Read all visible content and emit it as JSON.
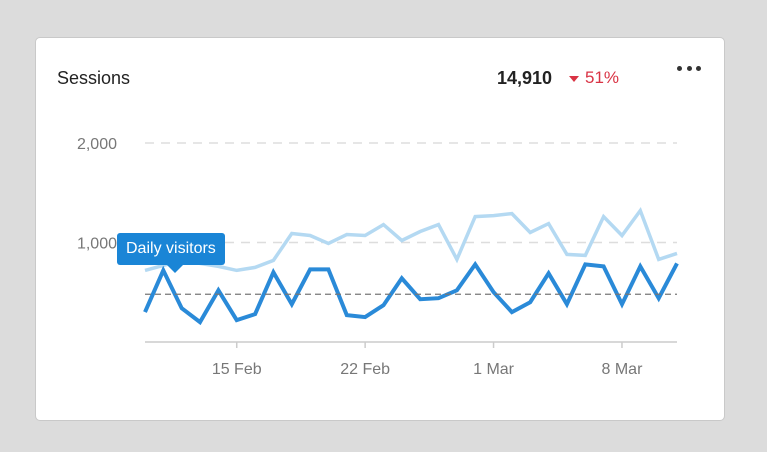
{
  "widget": {
    "title": "Sessions",
    "total": "14,910",
    "change": "51%",
    "change_direction": "down",
    "change_color": "#d93344",
    "menu_icon": "more-horizontal-icon",
    "tooltip": "Daily visitors"
  },
  "chart_data": {
    "type": "line",
    "x": [
      "2025-02-10",
      "2025-02-11",
      "2025-02-12",
      "2025-02-13",
      "2025-02-14",
      "2025-02-15",
      "2025-02-16",
      "2025-02-17",
      "2025-02-18",
      "2025-02-19",
      "2025-02-20",
      "2025-02-21",
      "2025-02-22",
      "2025-02-23",
      "2025-02-24",
      "2025-02-25",
      "2025-02-26",
      "2025-02-27",
      "2025-02-28",
      "2025-03-01",
      "2025-03-02",
      "2025-03-03",
      "2025-03-04",
      "2025-03-05",
      "2025-03-06",
      "2025-03-07",
      "2025-03-08",
      "2025-03-09",
      "2025-03-10",
      "2025-03-11"
    ],
    "x_ticks": [
      {
        "x": "2025-02-15",
        "label": "15 Feb"
      },
      {
        "x": "2025-02-22",
        "label": "22 Feb"
      },
      {
        "x": "2025-03-01",
        "label": "1 Mar"
      },
      {
        "x": "2025-03-08",
        "label": "8 Mar"
      }
    ],
    "series": [
      {
        "name": "Daily visitors",
        "color": "#2a8ad8",
        "values": [
          300,
          720,
          340,
          200,
          520,
          220,
          280,
          700,
          380,
          730,
          730,
          270,
          250,
          370,
          640,
          430,
          440,
          520,
          780,
          500,
          300,
          400,
          690,
          380,
          780,
          760,
          380,
          760,
          440,
          790
        ]
      },
      {
        "color": "#b4d9f2",
        "values": [
          720,
          770,
          820,
          790,
          760,
          720,
          750,
          820,
          1090,
          1070,
          990,
          1080,
          1070,
          1180,
          1020,
          1110,
          1180,
          830,
          1260,
          1270,
          1290,
          1100,
          1190,
          880,
          870,
          1260,
          1070,
          1320,
          830,
          890
        ]
      }
    ],
    "reference_line": 480,
    "ylim": [
      0,
      2050
    ],
    "y_ticks": [
      {
        "value": 1000,
        "label": "1,000"
      },
      {
        "value": 2000,
        "label": "2,000"
      }
    ],
    "grid": true,
    "legend": "none"
  }
}
